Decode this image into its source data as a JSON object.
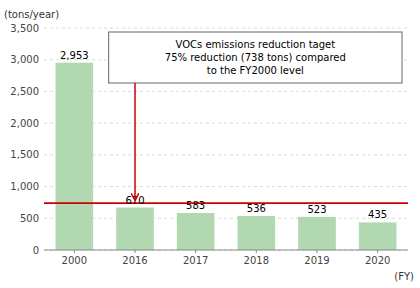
{
  "chart_data": {
    "type": "bar",
    "categories": [
      "2000",
      "2016",
      "2017",
      "2018",
      "2019",
      "2020"
    ],
    "values": [
      2953,
      670,
      583,
      536,
      523,
      435
    ],
    "value_labels": [
      "2,953",
      "670",
      "583",
      "536",
      "523",
      "435"
    ],
    "data_labels": true,
    "color": "#b2d8b2",
    "ylim": [
      0,
      3500
    ],
    "yticks": [
      0,
      500,
      {
        "value": 1000,
        "label": "1,000"
      },
      {
        "value": 1500,
        "label": "1,500"
      },
      {
        "value": 2000,
        "label": "2,000"
      },
      {
        "value": 2500,
        "label": "2,500"
      },
      {
        "value": 3000,
        "label": "3,000"
      },
      {
        "value": 3500,
        "label": "3,500"
      }
    ],
    "grid": true,
    "ylabel": "(tons/year)",
    "xlabel": "(FY)",
    "target_line": {
      "value": 738,
      "color": "#cc0000"
    },
    "annotation": "VOCs emissions reduction taget\n75% reduction (738 tons) compared\nto the FY2000 level"
  }
}
